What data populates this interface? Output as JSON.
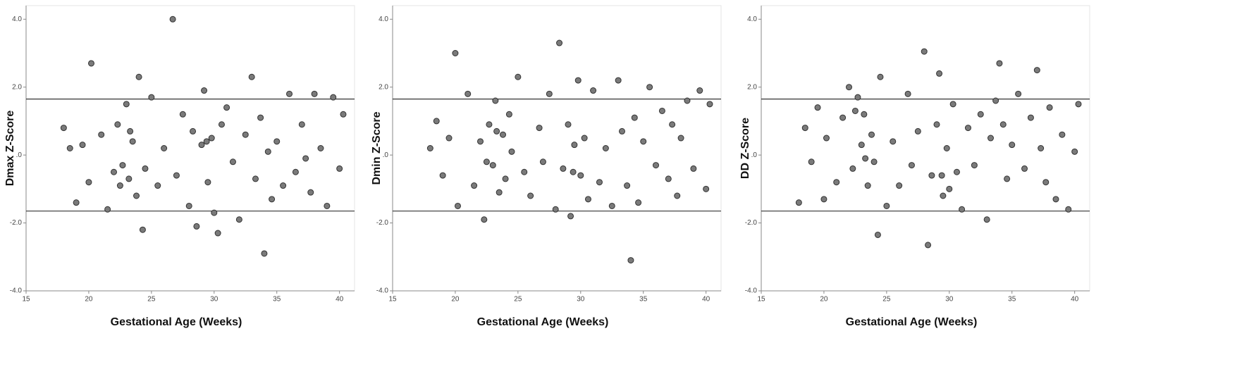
{
  "chart_data": [
    {
      "type": "scatter",
      "xlabel": "Gestational Age (Weeks)",
      "ylabel": "Dmax Z-Score",
      "color": "#7a7a7a",
      "x": [
        18,
        18.5,
        19,
        19.5,
        20,
        20.2,
        21,
        21.5,
        22,
        22.3,
        22.7,
        23,
        23.2,
        23.5,
        23.8,
        24,
        24.3,
        24.5,
        25,
        25.5,
        26,
        26.7,
        27,
        27.5,
        28,
        28.3,
        28.6,
        29,
        29.2,
        29.5,
        29.8,
        30,
        30.3,
        30.6,
        31,
        31.5,
        32,
        32.5,
        33,
        33.3,
        33.7,
        34,
        34.3,
        34.6,
        35,
        35.5,
        36,
        36.5,
        37,
        37.3,
        37.7,
        38,
        38.5,
        39,
        39.5,
        40,
        40.3,
        22.5,
        23.3,
        29.4
      ],
      "values": [
        0.8,
        0.2,
        -1.4,
        0.3,
        -0.8,
        2.7,
        0.6,
        -1.6,
        -0.5,
        0.9,
        -0.3,
        1.5,
        -0.7,
        0.4,
        -1.2,
        2.3,
        -2.2,
        -0.4,
        1.7,
        -0.9,
        0.2,
        4.0,
        -0.6,
        1.2,
        -1.5,
        0.7,
        -2.1,
        0.3,
        1.9,
        -0.8,
        0.5,
        -1.7,
        -2.3,
        0.9,
        1.4,
        -0.2,
        -1.9,
        0.6,
        2.3,
        -0.7,
        1.1,
        -2.9,
        0.1,
        -1.3,
        0.4,
        -0.9,
        1.8,
        -0.5,
        0.9,
        -0.1,
        -1.1,
        1.8,
        0.2,
        -1.5,
        1.7,
        -0.4,
        1.2,
        -0.9,
        0.7,
        0.4
      ],
      "hlines": [
        1.65,
        -1.65
      ],
      "xlim": [
        15,
        41.2
      ],
      "ylim": [
        -4,
        4.4
      ],
      "xticks": [
        15,
        20,
        25,
        30,
        35,
        40
      ],
      "yticks": [
        {
          "value": 4,
          "label": "4.0"
        },
        {
          "value": 2,
          "label": "2.0"
        },
        {
          "value": 0,
          "label": ".0"
        },
        {
          "value": -2,
          "label": "-2.0"
        },
        {
          "value": -4,
          "label": "-4.0"
        }
      ]
    },
    {
      "type": "scatter",
      "xlabel": "Gestational Age (Weeks)",
      "ylabel": "Dmin Z-Score",
      "color": "#7a7a7a",
      "x": [
        18,
        18.5,
        19,
        19.5,
        20,
        20.2,
        21,
        21.5,
        22,
        22.3,
        22.7,
        23,
        23.2,
        23.5,
        23.8,
        24,
        24.3,
        24.5,
        25,
        25.5,
        26,
        26.7,
        27,
        27.5,
        28,
        28.3,
        28.6,
        29,
        29.2,
        29.5,
        29.8,
        30,
        30.3,
        30.6,
        31,
        31.5,
        32,
        32.5,
        33,
        33.3,
        33.7,
        34,
        34.3,
        34.6,
        35,
        35.5,
        36,
        36.5,
        37,
        37.3,
        37.7,
        38,
        38.5,
        39,
        39.5,
        40,
        40.3,
        22.5,
        23.3,
        29.4
      ],
      "values": [
        0.2,
        1.0,
        -0.6,
        0.5,
        3.0,
        -1.5,
        1.8,
        -0.9,
        0.4,
        -1.9,
        0.9,
        -0.3,
        1.6,
        -1.1,
        0.6,
        -0.7,
        1.2,
        0.1,
        2.3,
        -0.5,
        -1.2,
        0.8,
        -0.2,
        1.8,
        -1.6,
        3.3,
        -0.4,
        0.9,
        -1.8,
        0.3,
        2.2,
        -0.6,
        0.5,
        -1.3,
        1.9,
        -0.8,
        0.2,
        -1.5,
        2.2,
        0.7,
        -0.9,
        -3.1,
        1.1,
        -1.4,
        0.4,
        2.0,
        -0.3,
        1.3,
        -0.7,
        0.9,
        -1.2,
        0.5,
        1.6,
        -0.4,
        1.9,
        -1.0,
        1.5,
        -0.2,
        0.7,
        -0.5
      ],
      "hlines": [
        1.65,
        -1.65
      ],
      "xlim": [
        15,
        41.2
      ],
      "ylim": [
        -4,
        4.4
      ],
      "xticks": [
        15,
        20,
        25,
        30,
        35,
        40
      ],
      "yticks": [
        {
          "value": 4,
          "label": "4.0"
        },
        {
          "value": 2,
          "label": "2.0"
        },
        {
          "value": 0,
          "label": ".0"
        },
        {
          "value": -2,
          "label": "-2.0"
        },
        {
          "value": -4,
          "label": "-4.0"
        }
      ]
    },
    {
      "type": "scatter",
      "xlabel": "Gestational Age (Weeks)",
      "ylabel": "DD Z-Score",
      "color": "#7a7a7a",
      "x": [
        18,
        18.5,
        19,
        19.5,
        20,
        20.2,
        21,
        21.5,
        22,
        22.3,
        22.7,
        23,
        23.2,
        23.5,
        23.8,
        24,
        24.3,
        24.5,
        25,
        25.5,
        26,
        26.7,
        27,
        27.5,
        28,
        28.3,
        28.6,
        29,
        29.2,
        29.5,
        29.8,
        30,
        30.3,
        30.6,
        31,
        31.5,
        32,
        32.5,
        33,
        33.3,
        33.7,
        34,
        34.3,
        34.6,
        35,
        35.5,
        36,
        36.5,
        37,
        37.3,
        37.7,
        38,
        38.5,
        39,
        39.5,
        40,
        40.3,
        22.5,
        23.3,
        29.4
      ],
      "values": [
        -1.4,
        0.8,
        -0.2,
        1.4,
        -1.3,
        0.5,
        -0.8,
        1.1,
        2.0,
        -0.4,
        1.7,
        0.3,
        1.2,
        -0.9,
        0.6,
        -0.2,
        -2.35,
        2.3,
        -1.5,
        0.4,
        -0.9,
        1.8,
        -0.3,
        0.7,
        3.05,
        -2.65,
        -0.6,
        0.9,
        2.4,
        -1.2,
        0.2,
        -1.0,
        1.5,
        -0.5,
        -1.6,
        0.8,
        -0.3,
        1.2,
        -1.9,
        0.5,
        1.6,
        2.7,
        0.9,
        -0.7,
        0.3,
        1.8,
        -0.4,
        1.1,
        2.5,
        0.2,
        -0.8,
        1.4,
        -1.3,
        0.6,
        -1.6,
        0.1,
        1.5,
        1.3,
        -0.1,
        -0.6
      ],
      "hlines": [
        1.65,
        -1.65
      ],
      "xlim": [
        15,
        41.2
      ],
      "ylim": [
        -4,
        4.4
      ],
      "xticks": [
        15,
        20,
        25,
        30,
        35,
        40
      ],
      "yticks": [
        {
          "value": 4,
          "label": "4.0"
        },
        {
          "value": 2,
          "label": "2.0"
        },
        {
          "value": 0,
          "label": ".0"
        },
        {
          "value": -2,
          "label": "-2.0"
        },
        {
          "value": -4,
          "label": "-4.0"
        }
      ]
    }
  ]
}
